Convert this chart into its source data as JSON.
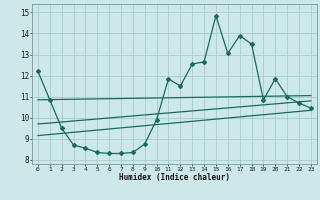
{
  "xlabel": "Humidex (Indice chaleur)",
  "bg_color": "#cce8e8",
  "grid_color": "#aacccc",
  "line_color": "#1a6b5a",
  "xlim": [
    -0.5,
    23.5
  ],
  "ylim": [
    7.8,
    15.4
  ],
  "xticks": [
    0,
    1,
    2,
    3,
    4,
    5,
    6,
    7,
    8,
    9,
    10,
    11,
    12,
    13,
    14,
    15,
    16,
    17,
    18,
    19,
    20,
    21,
    22,
    23
  ],
  "yticks": [
    8,
    9,
    10,
    11,
    12,
    13,
    14,
    15
  ],
  "main_x": [
    0,
    1,
    2,
    3,
    4,
    5,
    6,
    7,
    8,
    9,
    10,
    11,
    12,
    13,
    14,
    15,
    16,
    17,
    18,
    19,
    20,
    21,
    22,
    23
  ],
  "main_y": [
    12.2,
    10.85,
    9.5,
    8.7,
    8.55,
    8.35,
    8.3,
    8.3,
    8.35,
    8.75,
    9.9,
    11.85,
    11.5,
    12.55,
    12.65,
    14.85,
    13.05,
    13.9,
    13.5,
    10.85,
    11.85,
    11.0,
    10.7,
    10.45
  ],
  "trend1_x": [
    0,
    23
  ],
  "trend1_y": [
    10.85,
    11.05
  ],
  "trend2_x": [
    0,
    23
  ],
  "trend2_y": [
    9.7,
    10.8
  ],
  "trend3_x": [
    0,
    23
  ],
  "trend3_y": [
    9.15,
    10.35
  ]
}
